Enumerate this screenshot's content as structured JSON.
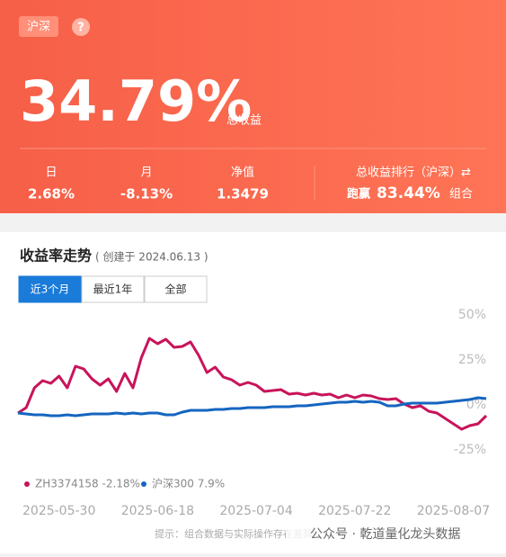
{
  "header": {
    "badge": "沪深",
    "help": "?",
    "total_return": "34.79%",
    "total_return_label": "总收益"
  },
  "stats": [
    {
      "label": "日",
      "value": "2.68%"
    },
    {
      "label": "月",
      "value": "-8.13%"
    },
    {
      "label": "净值",
      "value": "1.3479"
    }
  ],
  "rank": {
    "title": "总收益排行（沪深）⇄",
    "prefix": "跑赢",
    "value": "83.44%",
    "suffix": "组合"
  },
  "chart_section": {
    "title": "收益率走势",
    "subtitle": "( 创建于 2024.06.13 )",
    "tabs": [
      "近3个月",
      "最近1年",
      "全部"
    ],
    "footer": "提示：组合数据与实际操作存在差异",
    "watermark": "公众号 · 乾道量化龙头数据"
  },
  "chart_data": {
    "type": "line",
    "categories": [
      null,
      null,
      null,
      null,
      null,
      "2025-05-30",
      null,
      null,
      null,
      null,
      null,
      null,
      null,
      null,
      null,
      null,
      null,
      "2025-06-18",
      null,
      null,
      null,
      null,
      null,
      null,
      null,
      null,
      null,
      null,
      null,
      "2025-07-04",
      null,
      null,
      null,
      null,
      null,
      null,
      null,
      null,
      null,
      null,
      null,
      "2025-07-22",
      null,
      null,
      null,
      null,
      null,
      null,
      null,
      null,
      null,
      null,
      null,
      "2025-08-07",
      null,
      null,
      null,
      null
    ],
    "series": [
      {
        "name": "ZH3374158 -2.18%",
        "color": "#c8145a",
        "values": [
          -4.5,
          -1.5,
          9.5,
          13.5,
          12,
          16,
          9.5,
          21.5,
          20,
          14.5,
          11,
          14.5,
          7.5,
          17.5,
          9.5,
          26,
          37,
          34,
          36.5,
          32,
          32.5,
          35,
          27.5,
          18,
          21,
          15.5,
          14,
          11,
          12.5,
          11,
          7.5,
          8,
          8.5,
          6,
          6.5,
          5.5,
          6.5,
          5.5,
          6,
          4,
          5.5,
          4,
          5.5,
          5,
          3.5,
          3,
          3.5,
          0.5,
          -1.5,
          -0.5,
          -3.5,
          -4.5,
          -7.5,
          -10.5,
          -13.5,
          -11.5,
          -10.5,
          -6
        ]
      },
      {
        "name": "沪深300 7.9%",
        "color": "#1565c0",
        "values": [
          -4.5,
          -5,
          -5.5,
          -5.5,
          -6,
          -6,
          -5.5,
          -6,
          -5.5,
          -5,
          -5,
          -5,
          -4.5,
          -5,
          -4.5,
          -5,
          -4.5,
          -4.5,
          -5.5,
          -5.5,
          -4,
          -3,
          -3,
          -3,
          -2.5,
          -2.5,
          -2,
          -2,
          -1.5,
          -1.5,
          -1.5,
          -1,
          -1,
          -1,
          -0.5,
          -0.5,
          0,
          0.5,
          1,
          1.5,
          1.5,
          2,
          1.5,
          2,
          1.5,
          -0.5,
          -0.5,
          0.5,
          1,
          1,
          1,
          1,
          1.5,
          2,
          2.5,
          3,
          4,
          3.5
        ]
      }
    ],
    "ylim": [
      -35,
      55
    ],
    "yticks": [
      {
        "value": -25,
        "label": "-25%"
      },
      {
        "value": 0,
        "label": "0%"
      },
      {
        "value": 25,
        "label": "25%"
      },
      {
        "value": 50,
        "label": "50%"
      }
    ],
    "grid": false
  }
}
